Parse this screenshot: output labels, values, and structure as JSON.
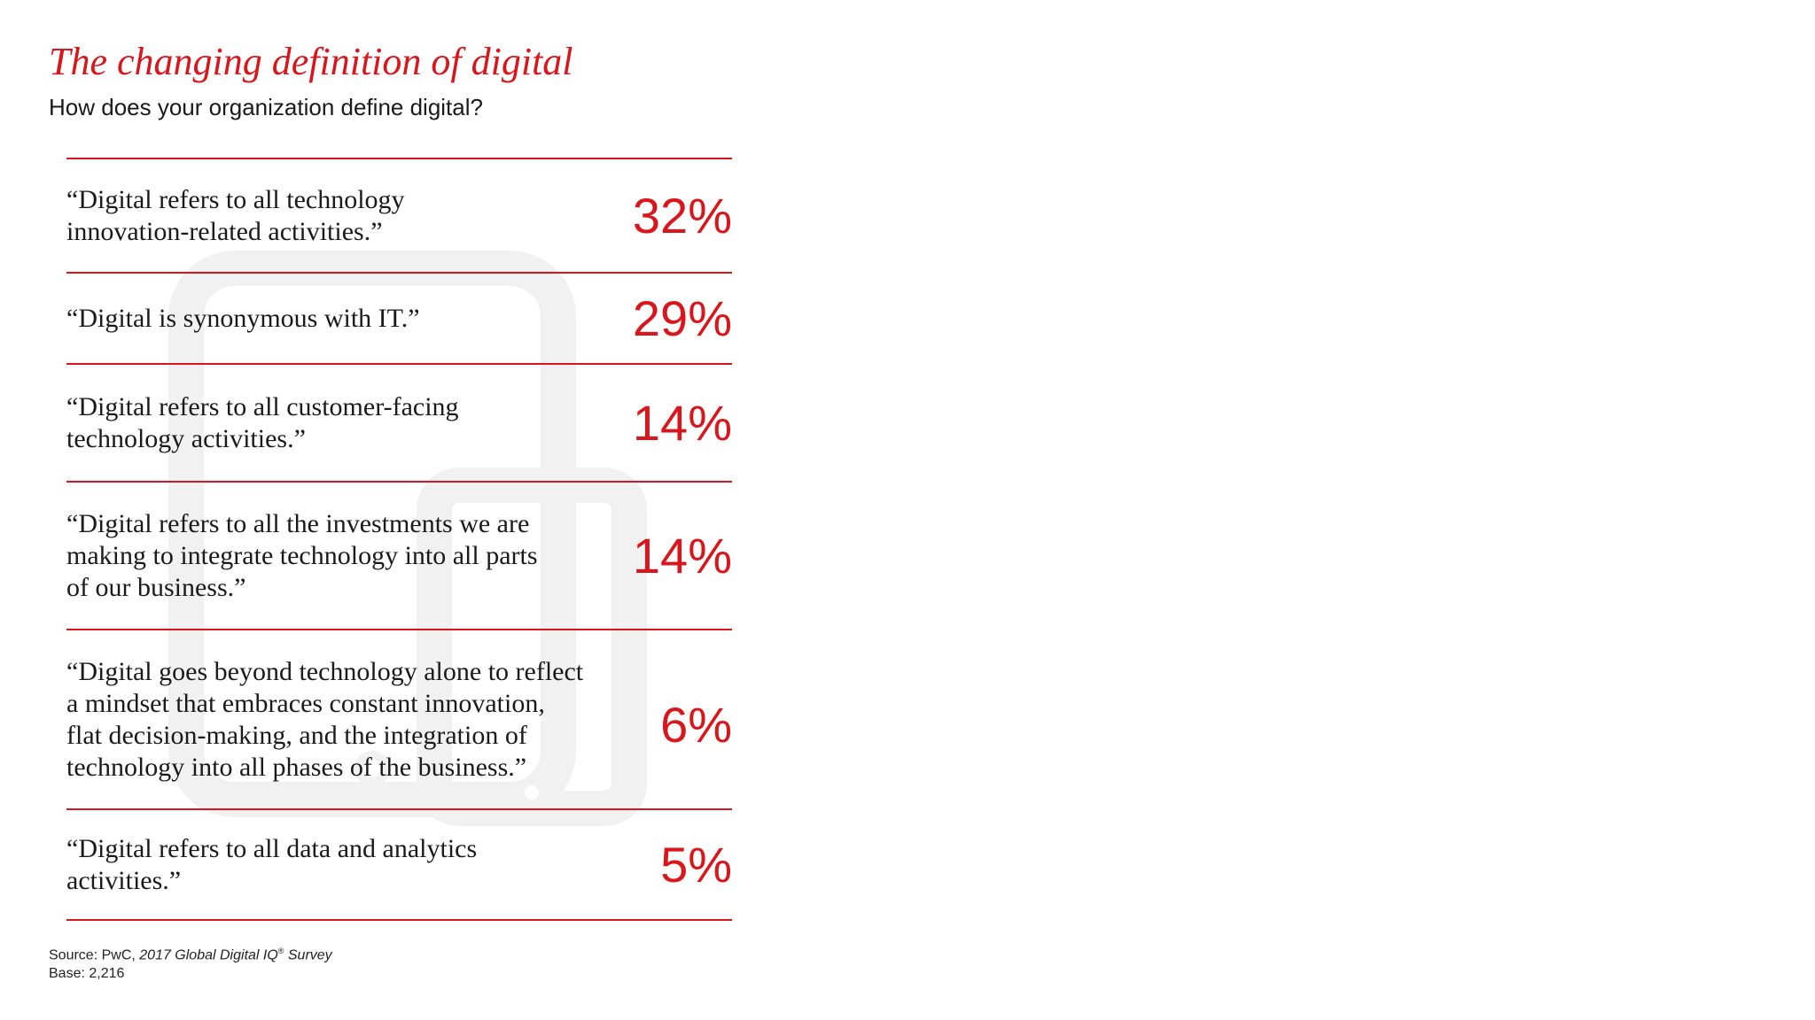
{
  "chart_data": {
    "type": "table",
    "title": "The changing definition of digital",
    "subtitle": "How does your organization define digital?",
    "categories": [
      "“Digital refers to all technology\ninnovation-related activities.”",
      "“Digital is synonymous with IT.”",
      "“Digital refers to all customer-facing\ntechnology activities.”",
      "“Digital refers to all the investments we are\nmaking to integrate technology into all parts\nof our business.”",
      "“Digital goes beyond technology alone to reflect\na mindset that embraces constant innovation,\nflat decision-making, and the integration of\ntechnology into all phases of the business.”",
      "“Digital refers to all data and analytics\nactivities.”"
    ],
    "values": [
      32,
      29,
      14,
      14,
      6,
      5
    ],
    "value_labels": [
      "32%",
      "29%",
      "14%",
      "14%",
      "6%",
      "5%"
    ],
    "source_prefix": "Source: PwC, ",
    "source_title": "2017 Global Digital IQ",
    "source_mark": "®",
    "source_suffix": " Survey",
    "base": "Base: 2,216"
  },
  "colors": {
    "accent": "#d8161c",
    "text": "#1a1a1a",
    "watermark": "#f1f1f1"
  },
  "icons": {
    "watermark": "devices-icon"
  }
}
